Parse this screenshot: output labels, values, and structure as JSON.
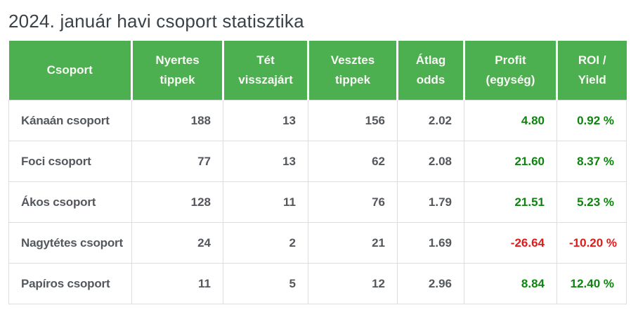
{
  "page": {
    "title": "2024. január havi csoport statisztika"
  },
  "colors": {
    "header_bg": "#4caf50",
    "header_text": "#f8f8f5",
    "header_divider": "#ffffff",
    "title_text": "#3a4147",
    "body_text": "#54585d",
    "positive_value": "#0d840d",
    "negative_value": "#e01b1b",
    "row_border": "#dddddd"
  },
  "table": {
    "columns": [
      {
        "id": "csoport",
        "label": "Csoport",
        "align": "left",
        "signed": false
      },
      {
        "id": "nyertes_tippek",
        "label": "Nyertes\ntippek",
        "align": "right",
        "signed": false
      },
      {
        "id": "tet_visszajart",
        "label": "Tét\nvisszajárt",
        "align": "right",
        "signed": false
      },
      {
        "id": "vesztes_tippek",
        "label": "Vesztes\ntippek",
        "align": "right",
        "signed": false
      },
      {
        "id": "atlag_odds",
        "label": "Átlag\nodds",
        "align": "right",
        "signed": false
      },
      {
        "id": "profit_egyseg",
        "label": "Profit\n(egység)",
        "align": "right",
        "signed": true
      },
      {
        "id": "roi_yield",
        "label": "ROI /\nYield",
        "align": "right",
        "signed": true
      }
    ],
    "rows": [
      {
        "csoport": "Kánaán csoport",
        "nyertes_tippek": "188",
        "tet_visszajart": "13",
        "vesztes_tippek": "156",
        "atlag_odds": "2.02",
        "profit_egyseg": "4.80",
        "roi_yield": "0.92 %"
      },
      {
        "csoport": "Foci csoport",
        "nyertes_tippek": "77",
        "tet_visszajart": "13",
        "vesztes_tippek": "62",
        "atlag_odds": "2.08",
        "profit_egyseg": "21.60",
        "roi_yield": "8.37 %"
      },
      {
        "csoport": "Ákos csoport",
        "nyertes_tippek": "128",
        "tet_visszajart": "11",
        "vesztes_tippek": "76",
        "atlag_odds": "1.79",
        "profit_egyseg": "21.51",
        "roi_yield": "5.23 %"
      },
      {
        "csoport": "Nagytétes csoport",
        "nyertes_tippek": "24",
        "tet_visszajart": "2",
        "vesztes_tippek": "21",
        "atlag_odds": "1.69",
        "profit_egyseg": "-26.64",
        "roi_yield": "-10.20 %"
      },
      {
        "csoport": "Papíros csoport",
        "nyertes_tippek": "11",
        "tet_visszajart": "5",
        "vesztes_tippek": "12",
        "atlag_odds": "2.96",
        "profit_egyseg": "8.84",
        "roi_yield": "12.40 %"
      }
    ]
  }
}
